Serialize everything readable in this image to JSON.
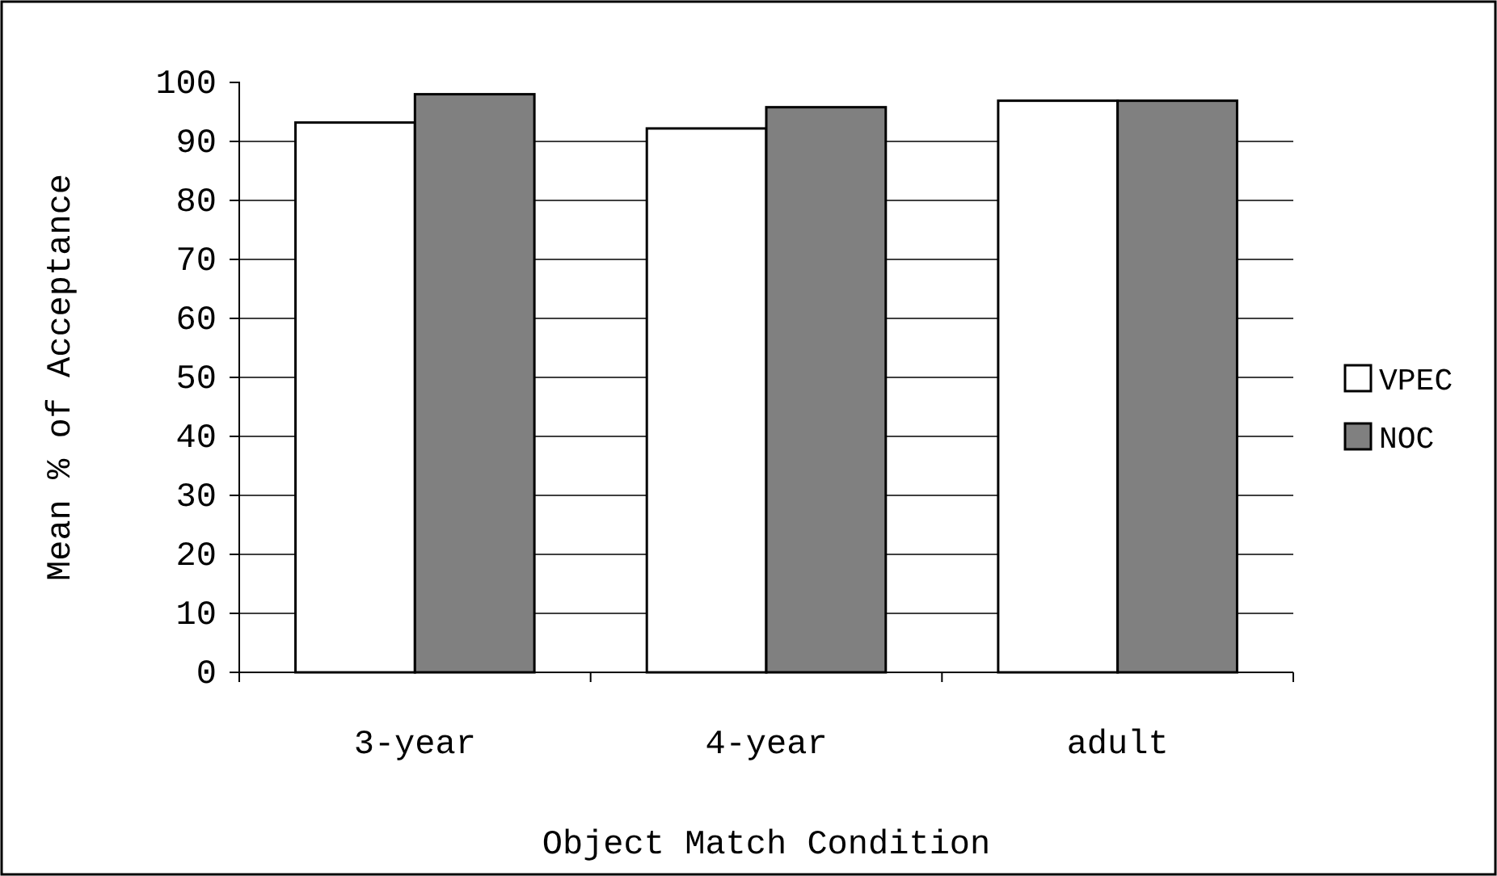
{
  "chart_data": {
    "type": "bar",
    "xlabel": "Object Match Condition",
    "ylabel": "Mean % of Acceptance",
    "categories": [
      "3-year",
      "4-year",
      "adult"
    ],
    "series": [
      {
        "name": "VPEC",
        "color": "#ffffff",
        "values": [
          93.2,
          92.2,
          96.9
        ]
      },
      {
        "name": "NOC",
        "color": "#808080",
        "values": [
          98,
          95.8,
          96.9
        ]
      }
    ],
    "ylim": [
      0,
      100
    ],
    "yticks": [
      0,
      10,
      20,
      30,
      40,
      50,
      60,
      70,
      80,
      90,
      100
    ],
    "grid": "y",
    "legend": "right"
  }
}
